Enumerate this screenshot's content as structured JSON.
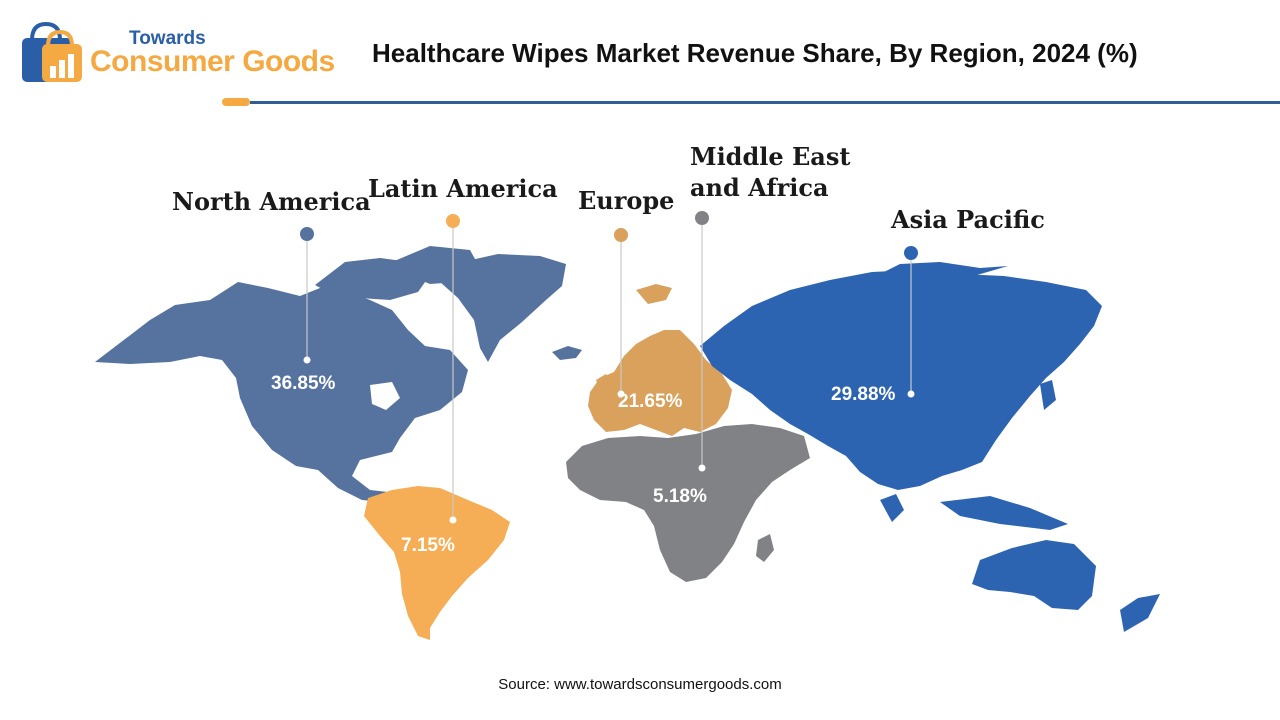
{
  "logo": {
    "line1": "Towards",
    "line2": "Consumer Goods"
  },
  "title": "Healthcare Wipes Market Revenue Share, By Region, 2024 (%)",
  "regions": {
    "north_america": {
      "name": "North America",
      "value": "36.85%",
      "color": "#55739e"
    },
    "latin_america": {
      "name": "Latin America",
      "value": "7.15%",
      "color": "#f5ae55"
    },
    "europe": {
      "name": "Europe",
      "value": "21.65%",
      "color": "#d9a15c"
    },
    "mea": {
      "name_line1": "Middle East",
      "name_line2": "and Africa",
      "value": "5.18%",
      "color": "#808286"
    },
    "asia_pacific": {
      "name": "Asia Pacific",
      "value": "29.88%",
      "color": "#2d64b2"
    }
  },
  "source": "Source: www.towardsconsumergoods.com"
}
